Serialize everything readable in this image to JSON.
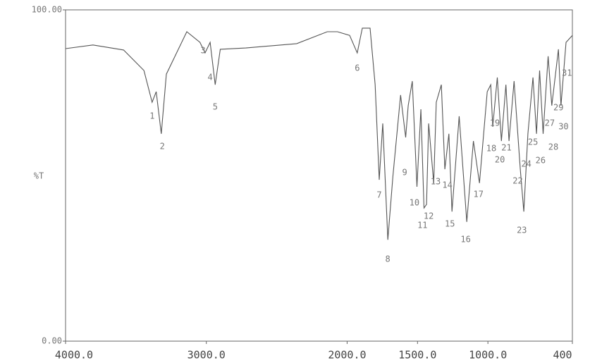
{
  "chart_data": {
    "type": "line",
    "ylabel": "%T",
    "color": "#555555",
    "x": [
      4000,
      3805,
      3588,
      3443,
      3385,
      3356,
      3320,
      3284,
      3139,
      3045,
      3009,
      2973,
      2937,
      2901,
      2720,
      2358,
      2141,
      2069,
      1982,
      1928,
      1892,
      1837,
      1801,
      1772,
      1747,
      1711,
      1675,
      1620,
      1584,
      1566,
      1537,
      1504,
      1476,
      1454,
      1436,
      1421,
      1385,
      1367,
      1331,
      1306,
      1277,
      1255,
      1204,
      1150,
      1103,
      1060,
      1005,
      980,
      966,
      933,
      904,
      872,
      850,
      814,
      770,
      745,
      716,
      680,
      655,
      633,
      608,
      572,
      546,
      499,
      481,
      445,
      400
    ],
    "values": [
      88.3,
      89.4,
      87.9,
      81.7,
      72.1,
      75.3,
      62.6,
      80.6,
      93.4,
      90.2,
      87.0,
      90.2,
      77.4,
      88.1,
      88.5,
      89.8,
      93.4,
      93.4,
      92.3,
      87.0,
      94.5,
      94.5,
      77.4,
      48.7,
      65.7,
      30.6,
      49.8,
      74.3,
      61.5,
      71.1,
      78.5,
      46.6,
      70.0,
      40.2,
      41.3,
      65.7,
      47.7,
      72.1,
      77.4,
      51.9,
      62.6,
      39.1,
      67.9,
      36.0,
      60.4,
      47.7,
      75.3,
      77.4,
      64.7,
      79.6,
      60.4,
      77.4,
      60.4,
      78.5,
      51.9,
      39.1,
      62.6,
      79.6,
      62.6,
      81.7,
      62.6,
      86.0,
      71.1,
      88.1,
      71.1,
      90.2,
      92.3
    ],
    "xlim": [
      4000,
      400
    ],
    "ylim": [
      0,
      100
    ],
    "xticks": [
      {
        "value": 4000,
        "label": "4000.0"
      },
      {
        "value": 3000,
        "label": "3000.0"
      },
      {
        "value": 2000,
        "label": "2000.0"
      },
      {
        "value": 1500,
        "label": "1500.0"
      },
      {
        "value": 1000,
        "label": "1000.0"
      },
      400
    ],
    "yticks": [
      {
        "value": 100,
        "label": "100.00"
      },
      {
        "value": 0,
        "label": "0.00"
      }
    ],
    "annotations": [
      {
        "text": "1",
        "x": 3385,
        "y": 67.9
      },
      {
        "text": "2",
        "x": 3313,
        "y": 58.7
      },
      {
        "text": "3",
        "x": 3023,
        "y": 87.7
      },
      {
        "text": "4",
        "x": 2973,
        "y": 79.6
      },
      {
        "text": "5",
        "x": 2937,
        "y": 70.6
      },
      {
        "text": "6",
        "x": 1928,
        "y": 82.3
      },
      {
        "text": "7",
        "x": 1772,
        "y": 44.0
      },
      {
        "text": "8",
        "x": 1711,
        "y": 24.7
      },
      {
        "text": "9",
        "x": 1591,
        "y": 50.9
      },
      {
        "text": "10",
        "x": 1522,
        "y": 41.7
      },
      {
        "text": "11",
        "x": 1465,
        "y": 34.9
      },
      {
        "text": "12",
        "x": 1421,
        "y": 37.7
      },
      {
        "text": "13",
        "x": 1371,
        "y": 48.1
      },
      {
        "text": "14",
        "x": 1288,
        "y": 47.0
      },
      {
        "text": "15",
        "x": 1270,
        "y": 35.3
      },
      {
        "text": "16",
        "x": 1158,
        "y": 30.6
      },
      {
        "text": "17",
        "x": 1067,
        "y": 44.3
      },
      {
        "text": "18",
        "x": 976,
        "y": 58.1
      },
      {
        "text": "19",
        "x": 951,
        "y": 65.7
      },
      {
        "text": "20",
        "x": 915,
        "y": 54.7
      },
      {
        "text": "21",
        "x": 868,
        "y": 58.3
      },
      {
        "text": "22",
        "x": 788,
        "y": 48.3
      },
      {
        "text": "23",
        "x": 759,
        "y": 33.4
      },
      {
        "text": "24",
        "x": 727,
        "y": 53.4
      },
      {
        "text": "25",
        "x": 680,
        "y": 60.0
      },
      {
        "text": "26",
        "x": 626,
        "y": 54.5
      },
      {
        "text": "27",
        "x": 561,
        "y": 65.7
      },
      {
        "text": "28",
        "x": 535,
        "y": 58.5
      },
      {
        "text": "29",
        "x": 499,
        "y": 70.4
      },
      {
        "text": "30",
        "x": 463,
        "y": 64.7
      },
      {
        "text": "31",
        "x": 438,
        "y": 80.9
      }
    ]
  }
}
